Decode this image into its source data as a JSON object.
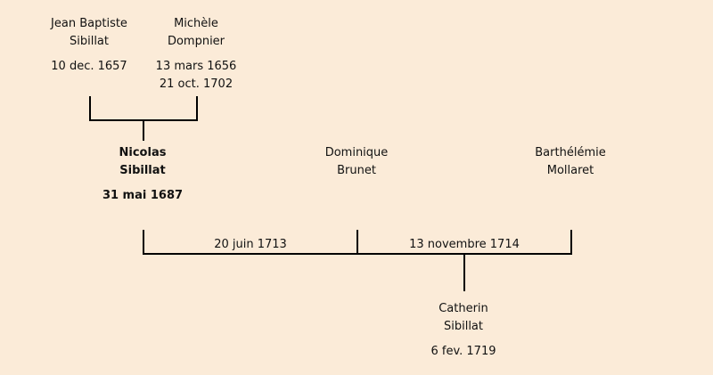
{
  "persons": {
    "jean_baptiste": {
      "first_name": "Jean Baptiste",
      "last_name": "Sibillat",
      "birth": "10 dec. 1657"
    },
    "michele": {
      "first_name": "Michèle",
      "last_name": "Dompnier",
      "birth": "13 mars 1656",
      "death": "21 oct. 1702"
    },
    "nicolas": {
      "first_name": "Nicolas",
      "last_name": "Sibillat",
      "birth": "31 mai 1687"
    },
    "dominique": {
      "first_name": "Dominique",
      "last_name": "Brunet"
    },
    "barthelemie": {
      "first_name": "Barthélémie",
      "last_name": "Mollaret"
    },
    "catherin": {
      "first_name": "Catherin",
      "last_name": "Sibillat",
      "birth": "6 fev. 1719"
    }
  },
  "marriages": {
    "first": "20 juin 1713",
    "second": "13 novembre 1714"
  },
  "colors": {
    "background": "#fbebd8",
    "line": "#000000",
    "text": "#111111"
  }
}
